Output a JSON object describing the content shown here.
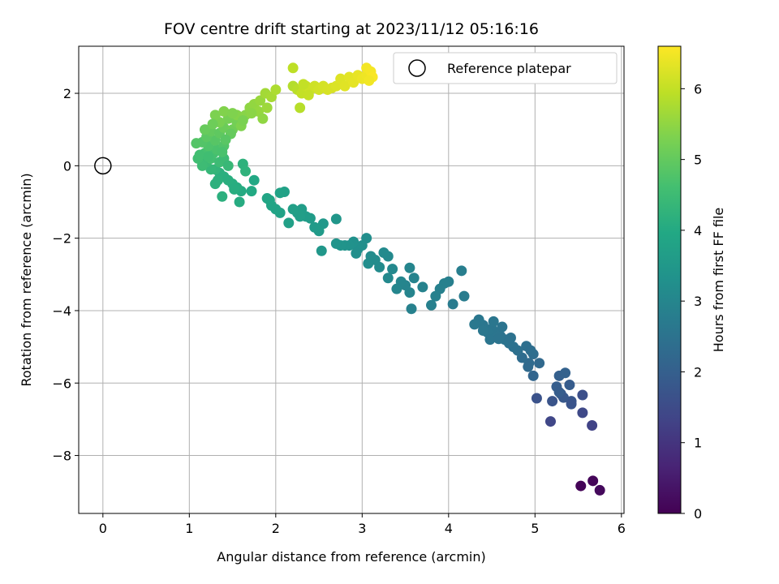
{
  "chart_data": {
    "type": "scatter",
    "title": "FOV centre drift starting at 2023/11/12 05:16:16",
    "xlabel": "Angular distance from reference (arcmin)",
    "ylabel": "Rotation from reference (arcmin)",
    "colorbar_label": "Hours from first FF file",
    "colormap": "viridis",
    "xlim": [
      -0.28,
      6.03
    ],
    "ylim": [
      -9.6,
      3.3
    ],
    "clim": [
      0,
      6.6
    ],
    "xticks": [
      "0",
      "1",
      "2",
      "3",
      "4",
      "5",
      "6"
    ],
    "yticks": [
      "−8",
      "−6",
      "−4",
      "−2",
      "0",
      "2"
    ],
    "colorbar_ticks": [
      "0",
      "1",
      "2",
      "3",
      "4",
      "5",
      "6"
    ],
    "grid": true,
    "legend": {
      "placement": "upper right",
      "label": "Reference platepar"
    },
    "reference": {
      "x": 0,
      "y": 0
    },
    "points": [
      [
        5.53,
        -8.84,
        0.05
      ],
      [
        5.67,
        -8.7,
        0.1
      ],
      [
        5.75,
        -8.96,
        0.15
      ],
      [
        5.66,
        -7.17,
        1.3
      ],
      [
        5.55,
        -6.82,
        1.45
      ],
      [
        5.18,
        -7.06,
        1.4
      ],
      [
        5.55,
        -6.33,
        1.6
      ],
      [
        5.2,
        -6.5,
        1.7
      ],
      [
        5.42,
        -6.5,
        1.75
      ],
      [
        5.3,
        -6.3,
        1.85
      ],
      [
        5.4,
        -6.05,
        1.9
      ],
      [
        5.25,
        -6.1,
        1.95
      ],
      [
        5.33,
        -6.4,
        1.8
      ],
      [
        5.28,
        -5.8,
        2.0
      ],
      [
        5.35,
        -5.72,
        2.05
      ],
      [
        5.02,
        -6.42,
        1.65
      ],
      [
        5.28,
        -6.25,
        1.92
      ],
      [
        5.42,
        -6.58,
        1.72
      ],
      [
        4.98,
        -5.8,
        2.15
      ],
      [
        5.05,
        -5.45,
        2.25
      ],
      [
        4.93,
        -5.45,
        2.3
      ],
      [
        4.98,
        -5.2,
        2.35
      ],
      [
        4.92,
        -5.55,
        2.28
      ],
      [
        4.9,
        -4.98,
        2.4
      ],
      [
        4.95,
        -5.1,
        2.38
      ],
      [
        4.85,
        -5.3,
        2.33
      ],
      [
        4.8,
        -5.1,
        2.42
      ],
      [
        4.75,
        -5.0,
        2.45
      ],
      [
        4.7,
        -4.9,
        2.48
      ],
      [
        4.65,
        -4.8,
        2.5
      ],
      [
        4.6,
        -4.7,
        2.52
      ],
      [
        4.55,
        -4.6,
        2.55
      ],
      [
        4.5,
        -4.5,
        2.57
      ],
      [
        4.45,
        -4.6,
        2.58
      ],
      [
        4.4,
        -4.4,
        2.6
      ],
      [
        4.35,
        -4.25,
        2.62
      ],
      [
        4.48,
        -4.8,
        2.56
      ],
      [
        4.62,
        -4.45,
        2.54
      ],
      [
        4.3,
        -4.38,
        2.63
      ],
      [
        4.52,
        -4.3,
        2.59
      ],
      [
        4.4,
        -4.55,
        2.61
      ],
      [
        4.72,
        -4.75,
        2.47
      ],
      [
        4.58,
        -4.78,
        2.53
      ],
      [
        4.18,
        -3.6,
        2.75
      ],
      [
        4.15,
        -2.9,
        2.8
      ],
      [
        4.05,
        -3.82,
        2.72
      ],
      [
        4.0,
        -3.2,
        2.82
      ],
      [
        3.95,
        -3.25,
        2.84
      ],
      [
        3.9,
        -3.4,
        2.86
      ],
      [
        3.85,
        -3.6,
        2.87
      ],
      [
        3.8,
        -3.85,
        2.85
      ],
      [
        3.7,
        -3.35,
        2.9
      ],
      [
        3.6,
        -3.1,
        2.92
      ],
      [
        3.55,
        -3.5,
        2.95
      ],
      [
        3.57,
        -3.95,
        2.88
      ],
      [
        3.55,
        -2.82,
        2.97
      ],
      [
        3.5,
        -3.3,
        2.96
      ],
      [
        3.45,
        -3.2,
        2.98
      ],
      [
        3.4,
        -3.4,
        3.0
      ],
      [
        3.35,
        -2.85,
        3.05
      ],
      [
        3.3,
        -3.1,
        3.08
      ],
      [
        3.3,
        -2.5,
        3.1
      ],
      [
        3.25,
        -2.4,
        3.12
      ],
      [
        3.2,
        -2.8,
        3.14
      ],
      [
        3.15,
        -2.6,
        3.16
      ],
      [
        3.1,
        -2.5,
        3.18
      ],
      [
        3.07,
        -2.7,
        3.2
      ],
      [
        3.05,
        -2.0,
        3.22
      ],
      [
        3.0,
        -2.2,
        3.25
      ],
      [
        2.95,
        -2.3,
        3.28
      ],
      [
        2.9,
        -2.1,
        3.3
      ],
      [
        2.93,
        -2.42,
        3.26
      ],
      [
        2.85,
        -2.2,
        3.32
      ],
      [
        2.8,
        -2.2,
        3.35
      ],
      [
        2.75,
        -2.2,
        3.38
      ],
      [
        2.7,
        -1.47,
        3.45
      ],
      [
        2.7,
        -2.15,
        3.4
      ],
      [
        2.55,
        -1.6,
        3.5
      ],
      [
        2.53,
        -2.35,
        3.48
      ],
      [
        2.5,
        -1.8,
        3.55
      ],
      [
        2.45,
        -1.7,
        3.58
      ],
      [
        2.4,
        -1.45,
        3.6
      ],
      [
        2.35,
        -1.4,
        3.62
      ],
      [
        2.3,
        -1.2,
        3.65
      ],
      [
        2.28,
        -1.4,
        3.66
      ],
      [
        2.25,
        -1.3,
        3.68
      ],
      [
        2.2,
        -1.2,
        3.7
      ],
      [
        2.15,
        -1.58,
        3.72
      ],
      [
        2.1,
        -0.72,
        3.75
      ],
      [
        2.05,
        -0.75,
        3.78
      ],
      [
        2.05,
        -1.3,
        3.8
      ],
      [
        2.0,
        -1.2,
        3.82
      ],
      [
        1.95,
        -1.1,
        3.85
      ],
      [
        1.93,
        -0.95,
        3.86
      ],
      [
        1.9,
        -0.9,
        3.88
      ],
      [
        1.75,
        -0.4,
        3.95
      ],
      [
        1.72,
        -0.7,
        3.98
      ],
      [
        1.6,
        -0.7,
        4.02
      ],
      [
        1.58,
        -1.0,
        4.05
      ],
      [
        1.55,
        -0.6,
        4.08
      ],
      [
        1.5,
        -0.5,
        4.1
      ],
      [
        1.45,
        -0.4,
        4.12
      ],
      [
        1.4,
        -0.3,
        4.14
      ],
      [
        1.38,
        -0.85,
        4.15
      ],
      [
        1.35,
        -0.2,
        4.16
      ],
      [
        1.33,
        -0.4,
        4.18
      ],
      [
        1.3,
        -0.5,
        4.2
      ],
      [
        1.52,
        -0.65,
        4.09
      ],
      [
        1.62,
        0.05,
        4.22
      ],
      [
        1.65,
        -0.15,
        4.24
      ],
      [
        1.3,
        -0.1,
        4.3
      ],
      [
        1.25,
        -0.1,
        4.35
      ],
      [
        1.2,
        0.1,
        4.45
      ],
      [
        1.15,
        0.0,
        4.5
      ],
      [
        1.1,
        0.2,
        4.55
      ],
      [
        1.25,
        0.2,
        4.6
      ],
      [
        1.35,
        0.1,
        4.5
      ],
      [
        1.4,
        0.2,
        4.48
      ],
      [
        1.45,
        0.0,
        4.4
      ],
      [
        1.28,
        0.35,
        4.62
      ],
      [
        1.18,
        0.35,
        4.65
      ],
      [
        1.32,
        0.45,
        4.7
      ],
      [
        1.22,
        0.55,
        4.75
      ],
      [
        1.15,
        0.65,
        4.8
      ],
      [
        1.08,
        0.62,
        4.82
      ],
      [
        1.4,
        0.55,
        4.78
      ],
      [
        1.3,
        0.7,
        4.85
      ],
      [
        1.2,
        0.8,
        4.9
      ],
      [
        1.25,
        0.95,
        5.0
      ],
      [
        1.18,
        1.0,
        5.05
      ],
      [
        1.35,
        0.9,
        4.95
      ],
      [
        1.4,
        1.05,
        5.1
      ],
      [
        1.5,
        1.0,
        5.15
      ],
      [
        1.55,
        1.2,
        5.2
      ],
      [
        1.45,
        1.3,
        5.22
      ],
      [
        1.35,
        1.2,
        5.25
      ],
      [
        1.3,
        1.4,
        5.3
      ],
      [
        1.4,
        1.5,
        5.35
      ],
      [
        1.55,
        1.4,
        5.38
      ],
      [
        1.6,
        1.1,
        5.32
      ],
      [
        1.65,
        1.4,
        5.42
      ],
      [
        1.7,
        1.6,
        5.48
      ],
      [
        1.75,
        1.7,
        5.52
      ],
      [
        1.8,
        1.5,
        5.55
      ],
      [
        1.82,
        1.8,
        5.58
      ],
      [
        1.85,
        1.3,
        5.5
      ],
      [
        1.9,
        1.6,
        5.62
      ],
      [
        1.88,
        2.0,
        5.68
      ],
      [
        1.95,
        1.9,
        5.72
      ],
      [
        2.0,
        2.1,
        5.78
      ],
      [
        1.12,
        0.3,
        4.58
      ],
      [
        1.22,
        0.25,
        4.55
      ],
      [
        1.38,
        0.38,
        4.68
      ],
      [
        1.48,
        0.88,
        5.02
      ],
      [
        1.27,
        1.15,
        5.12
      ],
      [
        1.62,
        1.25,
        5.28
      ],
      [
        1.72,
        1.45,
        5.45
      ],
      [
        1.5,
        1.45,
        5.33
      ],
      [
        1.42,
        0.72,
        4.88
      ],
      [
        2.2,
        2.2,
        5.85
      ],
      [
        2.25,
        2.1,
        5.9
      ],
      [
        2.2,
        2.7,
        5.95
      ],
      [
        2.28,
        1.6,
        5.88
      ],
      [
        2.3,
        2.0,
        6.0
      ],
      [
        2.35,
        2.2,
        6.05
      ],
      [
        2.4,
        2.1,
        6.08
      ],
      [
        2.45,
        2.2,
        6.12
      ],
      [
        2.5,
        2.1,
        6.15
      ],
      [
        2.55,
        2.2,
        6.18
      ],
      [
        2.6,
        2.1,
        6.2
      ],
      [
        2.65,
        2.15,
        6.22
      ],
      [
        2.7,
        2.2,
        6.25
      ],
      [
        2.75,
        2.4,
        6.28
      ],
      [
        2.8,
        2.2,
        6.3
      ],
      [
        2.85,
        2.45,
        6.32
      ],
      [
        2.9,
        2.3,
        6.35
      ],
      [
        2.95,
        2.5,
        6.38
      ],
      [
        3.0,
        2.4,
        6.42
      ],
      [
        3.05,
        2.5,
        6.45
      ],
      [
        3.05,
        2.7,
        6.5
      ],
      [
        3.1,
        2.6,
        6.52
      ],
      [
        3.12,
        2.45,
        6.55
      ],
      [
        2.38,
        1.95,
        6.02
      ],
      [
        2.32,
        2.25,
        6.0
      ],
      [
        3.08,
        2.35,
        6.48
      ]
    ]
  }
}
